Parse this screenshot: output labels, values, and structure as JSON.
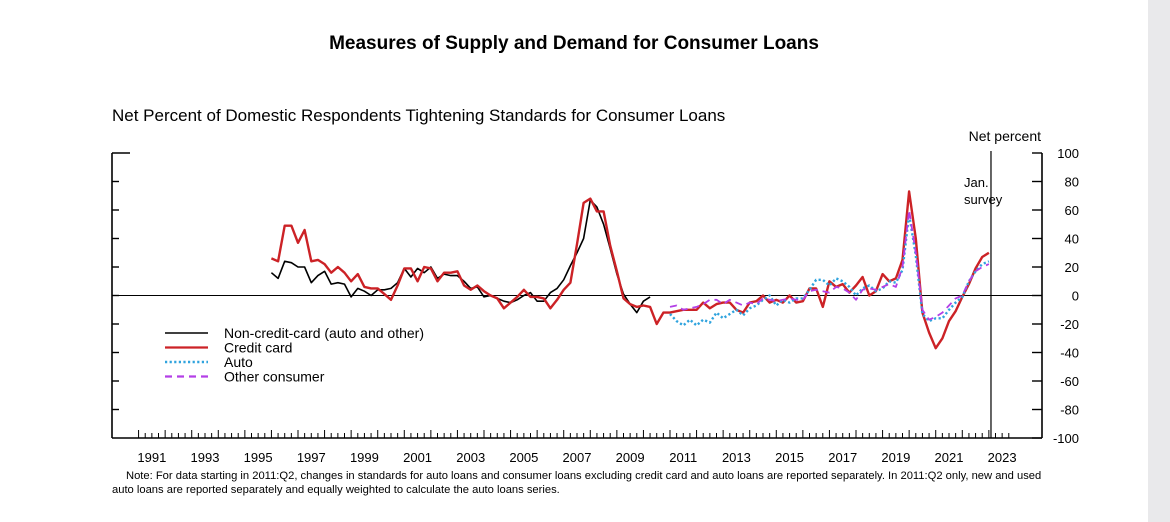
{
  "page": {
    "title": "Measures of Supply and Demand for Consumer Loans",
    "note": "Note: For data starting in 2011:Q2, changes in standards for auto loans and consumer loans excluding credit card and auto loans are reported separately. In 2011:Q2 only, new and used auto loans are reported separately and equally weighted to calculate the auto loans series."
  },
  "chart_data": {
    "type": "line",
    "title": "Net Percent of Domestic Respondents Tightening Standards for Consumer Loans",
    "ylabel": "Net percent",
    "annotation": "Jan. survey",
    "xlim": [
      1990,
      2025
    ],
    "ylim": [
      -100,
      100
    ],
    "x_ticks": [
      "1991",
      "1993",
      "1995",
      "1997",
      "1999",
      "2001",
      "2003",
      "2005",
      "2007",
      "2009",
      "2011",
      "2013",
      "2015",
      "2017",
      "2019",
      "2021",
      "2023"
    ],
    "y_ticks": [
      "100",
      "80",
      "60",
      "40",
      "20",
      "0",
      "-20",
      "-40",
      "-60",
      "-80",
      "-100"
    ],
    "survey_line_x": 2023.08,
    "legend_position": "lower-left",
    "series": [
      {
        "name": "Non-credit-card (auto and other)",
        "color": "#000000",
        "dash": "solid",
        "points": [
          [
            1996.0,
            16
          ],
          [
            1996.25,
            12
          ],
          [
            1996.5,
            24
          ],
          [
            1996.75,
            23
          ],
          [
            1997.0,
            20
          ],
          [
            1997.25,
            20
          ],
          [
            1997.5,
            9
          ],
          [
            1997.75,
            14
          ],
          [
            1998.0,
            17
          ],
          [
            1998.25,
            8
          ],
          [
            1998.5,
            9
          ],
          [
            1998.75,
            8
          ],
          [
            1999.0,
            -1
          ],
          [
            1999.25,
            5
          ],
          [
            1999.5,
            3
          ],
          [
            1999.75,
            0
          ],
          [
            2000.0,
            4
          ],
          [
            2000.25,
            4
          ],
          [
            2000.5,
            5
          ],
          [
            2000.75,
            9
          ],
          [
            2001.0,
            19
          ],
          [
            2001.25,
            13
          ],
          [
            2001.5,
            19
          ],
          [
            2001.75,
            16
          ],
          [
            2002.0,
            20
          ],
          [
            2002.25,
            12
          ],
          [
            2002.5,
            15
          ],
          [
            2002.75,
            14
          ],
          [
            2003.0,
            14
          ],
          [
            2003.25,
            10
          ],
          [
            2003.5,
            5
          ],
          [
            2003.75,
            6
          ],
          [
            2004.0,
            -1
          ],
          [
            2004.25,
            0
          ],
          [
            2004.5,
            -2
          ],
          [
            2004.75,
            -4
          ],
          [
            2005.0,
            -5
          ],
          [
            2005.25,
            -3
          ],
          [
            2005.5,
            0
          ],
          [
            2005.75,
            2
          ],
          [
            2006.0,
            -4
          ],
          [
            2006.25,
            -4
          ],
          [
            2006.5,
            2
          ],
          [
            2006.75,
            5
          ],
          [
            2007.0,
            11
          ],
          [
            2007.25,
            21
          ],
          [
            2007.5,
            30
          ],
          [
            2007.75,
            40
          ],
          [
            2008.0,
            67
          ],
          [
            2008.25,
            62
          ],
          [
            2008.5,
            50
          ],
          [
            2008.75,
            33
          ],
          [
            2009.0,
            15
          ],
          [
            2009.25,
            1
          ],
          [
            2009.5,
            -6
          ],
          [
            2009.75,
            -12
          ],
          [
            2010.0,
            -4
          ],
          [
            2010.25,
            -1
          ]
        ]
      },
      {
        "name": "Credit card",
        "color": "#cc2226",
        "dash": "solid",
        "points": [
          [
            1996.0,
            26
          ],
          [
            1996.25,
            24
          ],
          [
            1996.5,
            49
          ],
          [
            1996.75,
            49
          ],
          [
            1997.0,
            37
          ],
          [
            1997.25,
            46
          ],
          [
            1997.5,
            24
          ],
          [
            1997.75,
            25
          ],
          [
            1998.0,
            22
          ],
          [
            1998.25,
            16
          ],
          [
            1998.5,
            20
          ],
          [
            1998.75,
            16
          ],
          [
            1999.0,
            10
          ],
          [
            1999.25,
            15
          ],
          [
            1999.5,
            6
          ],
          [
            1999.75,
            5
          ],
          [
            2000.0,
            5
          ],
          [
            2000.25,
            1
          ],
          [
            2000.5,
            -3
          ],
          [
            2000.75,
            7
          ],
          [
            2001.0,
            19
          ],
          [
            2001.25,
            19
          ],
          [
            2001.5,
            10
          ],
          [
            2001.75,
            20
          ],
          [
            2002.0,
            19
          ],
          [
            2002.25,
            10
          ],
          [
            2002.5,
            16
          ],
          [
            2002.75,
            16
          ],
          [
            2003.0,
            17
          ],
          [
            2003.25,
            7
          ],
          [
            2003.5,
            4
          ],
          [
            2003.75,
            7
          ],
          [
            2004.0,
            3
          ],
          [
            2004.25,
            0
          ],
          [
            2004.5,
            -2
          ],
          [
            2004.75,
            -9
          ],
          [
            2005.0,
            -5
          ],
          [
            2005.25,
            -1
          ],
          [
            2005.5,
            4
          ],
          [
            2005.75,
            -1
          ],
          [
            2006.0,
            -1
          ],
          [
            2006.25,
            -2
          ],
          [
            2006.5,
            -9
          ],
          [
            2006.75,
            -3
          ],
          [
            2007.0,
            4
          ],
          [
            2007.25,
            9
          ],
          [
            2007.5,
            36
          ],
          [
            2007.75,
            65
          ],
          [
            2008.0,
            68
          ],
          [
            2008.25,
            59
          ],
          [
            2008.5,
            59
          ],
          [
            2008.75,
            35
          ],
          [
            2009.0,
            17
          ],
          [
            2009.25,
            -2
          ],
          [
            2009.5,
            -6
          ],
          [
            2009.75,
            -8
          ],
          [
            2010.0,
            -7
          ],
          [
            2010.25,
            -8
          ],
          [
            2010.5,
            -20
          ],
          [
            2010.75,
            -12
          ],
          [
            2011.0,
            -12
          ],
          [
            2011.25,
            -11
          ],
          [
            2011.5,
            -10
          ],
          [
            2011.75,
            -10
          ],
          [
            2012.0,
            -10
          ],
          [
            2012.25,
            -5
          ],
          [
            2012.5,
            -9
          ],
          [
            2012.75,
            -6
          ],
          [
            2013.0,
            -5
          ],
          [
            2013.25,
            -5
          ],
          [
            2013.5,
            -10
          ],
          [
            2013.75,
            -12
          ],
          [
            2014.0,
            -5
          ],
          [
            2014.25,
            -4
          ],
          [
            2014.5,
            0
          ],
          [
            2014.75,
            -5
          ],
          [
            2015.0,
            -3
          ],
          [
            2015.25,
            -5
          ],
          [
            2015.5,
            0
          ],
          [
            2015.75,
            -5
          ],
          [
            2016.0,
            -4
          ],
          [
            2016.25,
            5
          ],
          [
            2016.5,
            5
          ],
          [
            2016.75,
            -8
          ],
          [
            2017.0,
            10
          ],
          [
            2017.25,
            6
          ],
          [
            2017.5,
            8
          ],
          [
            2017.75,
            2
          ],
          [
            2018.0,
            7
          ],
          [
            2018.25,
            13
          ],
          [
            2018.5,
            0
          ],
          [
            2018.75,
            3
          ],
          [
            2019.0,
            15
          ],
          [
            2019.25,
            10
          ],
          [
            2019.5,
            12
          ],
          [
            2019.75,
            25
          ],
          [
            2020.0,
            73
          ],
          [
            2020.25,
            40
          ],
          [
            2020.5,
            -12
          ],
          [
            2020.75,
            -26
          ],
          [
            2021.0,
            -37
          ],
          [
            2021.25,
            -30
          ],
          [
            2021.5,
            -18
          ],
          [
            2021.75,
            -11
          ],
          [
            2022.0,
            -1
          ],
          [
            2022.25,
            8
          ],
          [
            2022.5,
            19
          ],
          [
            2022.75,
            27
          ],
          [
            2023.0,
            30
          ]
        ]
      },
      {
        "name": "Auto",
        "color": "#2fa3de",
        "dash": "dotted",
        "points": [
          [
            2011.0,
            -13
          ],
          [
            2011.25,
            -18
          ],
          [
            2011.5,
            -21
          ],
          [
            2011.75,
            -17
          ],
          [
            2012.0,
            -21
          ],
          [
            2012.25,
            -17
          ],
          [
            2012.5,
            -19
          ],
          [
            2012.75,
            -12
          ],
          [
            2013.0,
            -16
          ],
          [
            2013.25,
            -13
          ],
          [
            2013.5,
            -10
          ],
          [
            2013.75,
            -14
          ],
          [
            2014.0,
            -9
          ],
          [
            2014.25,
            -7
          ],
          [
            2014.5,
            -3
          ],
          [
            2014.75,
            0
          ],
          [
            2015.0,
            -7
          ],
          [
            2015.25,
            -3
          ],
          [
            2015.5,
            -5
          ],
          [
            2015.75,
            -2
          ],
          [
            2016.0,
            -2
          ],
          [
            2016.25,
            4
          ],
          [
            2016.5,
            11
          ],
          [
            2016.75,
            11
          ],
          [
            2017.0,
            7
          ],
          [
            2017.25,
            12
          ],
          [
            2017.5,
            10
          ],
          [
            2017.75,
            6
          ],
          [
            2018.0,
            0
          ],
          [
            2018.25,
            5
          ],
          [
            2018.5,
            7
          ],
          [
            2018.75,
            3
          ],
          [
            2019.0,
            5
          ],
          [
            2019.25,
            10
          ],
          [
            2019.5,
            9
          ],
          [
            2019.75,
            18
          ],
          [
            2020.0,
            57
          ],
          [
            2020.25,
            28
          ],
          [
            2020.5,
            -13
          ],
          [
            2020.75,
            -18
          ],
          [
            2021.0,
            -16
          ],
          [
            2021.25,
            -16
          ],
          [
            2021.5,
            -10
          ],
          [
            2021.75,
            -5
          ],
          [
            2022.0,
            -1
          ],
          [
            2022.25,
            10
          ],
          [
            2022.5,
            17
          ],
          [
            2022.75,
            22
          ],
          [
            2023.0,
            24
          ]
        ]
      },
      {
        "name": "Other consumer",
        "color": "#b33fe6",
        "dash": "dashed",
        "points": [
          [
            2011.0,
            -8
          ],
          [
            2011.25,
            -7
          ],
          [
            2011.5,
            -10
          ],
          [
            2011.75,
            -9
          ],
          [
            2012.0,
            -8
          ],
          [
            2012.25,
            -6
          ],
          [
            2012.5,
            -3
          ],
          [
            2012.75,
            -3
          ],
          [
            2013.0,
            -6
          ],
          [
            2013.25,
            -3
          ],
          [
            2013.5,
            -5
          ],
          [
            2013.75,
            -7
          ],
          [
            2014.0,
            -5
          ],
          [
            2014.25,
            -6
          ],
          [
            2014.5,
            -2
          ],
          [
            2014.75,
            -3
          ],
          [
            2015.0,
            -4
          ],
          [
            2015.25,
            -3
          ],
          [
            2015.5,
            -2
          ],
          [
            2015.75,
            -3
          ],
          [
            2016.0,
            -3
          ],
          [
            2016.25,
            3
          ],
          [
            2016.5,
            4
          ],
          [
            2016.75,
            3
          ],
          [
            2017.0,
            2
          ],
          [
            2017.25,
            6
          ],
          [
            2017.5,
            5
          ],
          [
            2017.75,
            2
          ],
          [
            2018.0,
            -3
          ],
          [
            2018.25,
            4
          ],
          [
            2018.5,
            5
          ],
          [
            2018.75,
            4
          ],
          [
            2019.0,
            6
          ],
          [
            2019.25,
            8
          ],
          [
            2019.5,
            6
          ],
          [
            2019.75,
            20
          ],
          [
            2020.0,
            60
          ],
          [
            2020.25,
            30
          ],
          [
            2020.5,
            -10
          ],
          [
            2020.75,
            -17
          ],
          [
            2021.0,
            -15
          ],
          [
            2021.25,
            -12
          ],
          [
            2021.5,
            -7
          ],
          [
            2021.75,
            -2
          ],
          [
            2022.0,
            0
          ],
          [
            2022.25,
            10
          ],
          [
            2022.5,
            17
          ],
          [
            2022.75,
            20
          ],
          [
            2023.0,
            22
          ]
        ]
      }
    ]
  }
}
